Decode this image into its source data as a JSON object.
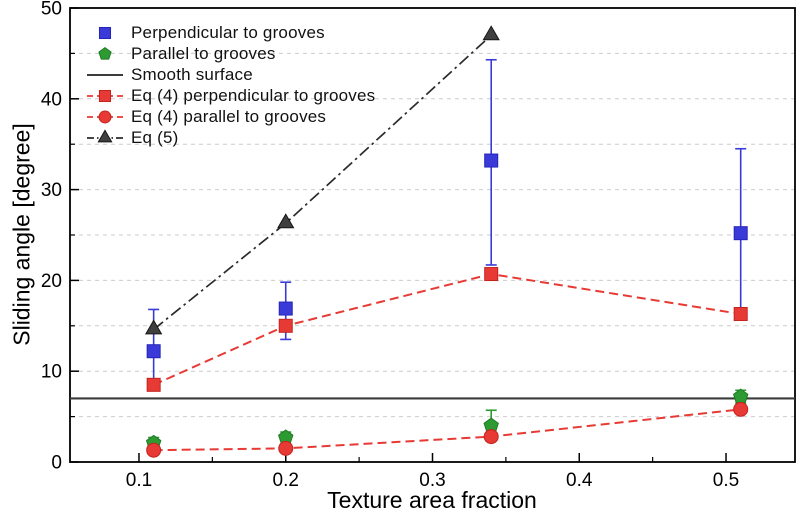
{
  "figure": {
    "background": "#ffffff"
  },
  "chart_data": {
    "type": "scatter",
    "title": "",
    "xlabel": "Texture area fraction",
    "ylabel": "Sliding angle [degree]",
    "xlim": [
      0.053,
      0.547
    ],
    "ylim": [
      0,
      50
    ],
    "x_ticks_major": [
      0.1,
      0.2,
      0.3,
      0.4,
      0.5
    ],
    "x_ticks_minor": [
      0.15,
      0.25,
      0.35,
      0.45
    ],
    "x_tick_labels": [
      "0.1",
      "0.2",
      "0.3",
      "0.4",
      "0.5"
    ],
    "y_ticks_major": [
      0,
      10,
      20,
      30,
      40,
      50
    ],
    "y_ticks_minor": [
      5,
      15,
      25,
      35,
      45
    ],
    "y_tick_labels": [
      "0",
      "10",
      "20",
      "30",
      "40",
      "50"
    ],
    "gridlines_y": [
      5,
      10,
      15,
      20,
      25,
      30,
      35,
      40,
      45
    ],
    "grid_color": "#cccccc",
    "axis_color": "#000000",
    "legend_position": "top-left",
    "series": [
      {
        "name": "Perpendicular to grooves",
        "marker": "square",
        "color": "#3a3ad9",
        "edge": "#2525b8",
        "line": "none",
        "x": [
          0.11,
          0.2,
          0.34,
          0.51
        ],
        "y": [
          12.2,
          16.9,
          33.2,
          25.2
        ],
        "err_minus": [
          4.2,
          3.4,
          11.5,
          8.8
        ],
        "err_plus": [
          4.6,
          2.9,
          11.1,
          9.3
        ]
      },
      {
        "name": "Parallel to grooves",
        "marker": "pentagon",
        "color": "#2e9b32",
        "edge": "#1f7a24",
        "line": "none",
        "x": [
          0.11,
          0.2,
          0.34,
          0.51
        ],
        "y": [
          2.1,
          2.7,
          4.0,
          7.2
        ],
        "err_minus": [
          0.6,
          0.7,
          1.1,
          0.7
        ],
        "err_plus": [
          0.6,
          0.6,
          1.7,
          0.7
        ]
      },
      {
        "name": "Smooth surface",
        "marker": "none",
        "color": "#3c3c3c",
        "edge": "#3c3c3c",
        "line": "solid",
        "y_const": 7
      },
      {
        "name": "Eq (4) perpendicular to grooves",
        "marker": "square",
        "color": "#e83a34",
        "edge": "#c32320",
        "line": "dashed",
        "x": [
          0.11,
          0.2,
          0.34,
          0.51
        ],
        "y": [
          8.5,
          15.0,
          20.7,
          16.3
        ]
      },
      {
        "name": "Eq (4) parallel to grooves",
        "marker": "circle",
        "color": "#e83a34",
        "edge": "#c32320",
        "line": "dashed",
        "x": [
          0.11,
          0.2,
          0.34,
          0.51
        ],
        "y": [
          1.3,
          1.5,
          2.8,
          5.8
        ]
      },
      {
        "name": "Eq (5)",
        "marker": "triangle",
        "color": "#3f3f3f",
        "edge": "#161616",
        "line": "dashdot",
        "line_color": "#2b2b2b",
        "x": [
          0.11,
          0.2,
          0.34
        ],
        "y": [
          14.6,
          26.3,
          47.0
        ]
      }
    ]
  }
}
